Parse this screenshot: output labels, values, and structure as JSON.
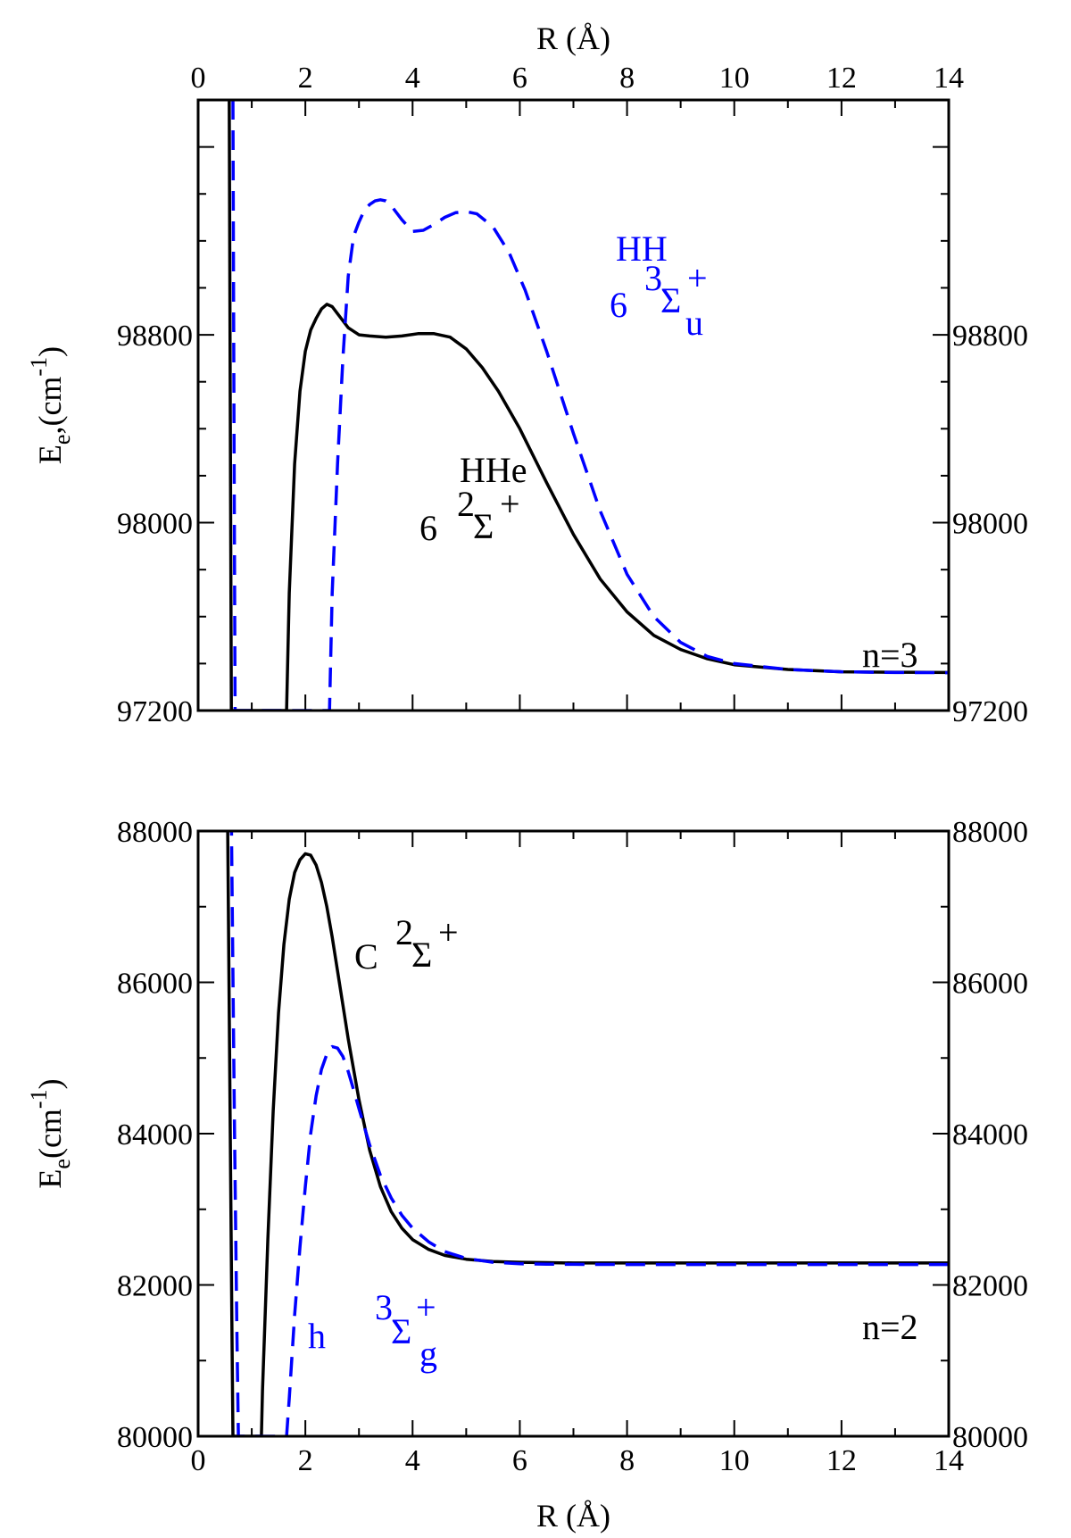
{
  "chart_data": [
    {
      "type": "line",
      "title": "",
      "xlabel": "R (Å)",
      "xlabel_position": "top",
      "ylabel": "E_e,(cm^-1)",
      "xlim": [
        0,
        14
      ],
      "ylim": [
        97200,
        99800
      ],
      "x_ticks": [
        0,
        2,
        4,
        6,
        8,
        10,
        12,
        14
      ],
      "y_ticks": [
        97200,
        98000,
        98800
      ],
      "x_tick_labels_shown": true,
      "grid": false,
      "legend": "none",
      "series": [
        {
          "label": "HHe 6 2Σ+",
          "color": "#000000",
          "dash": "solid",
          "x": [
            0.58,
            0.6,
            0.62,
            1.65,
            1.7,
            1.8,
            1.9,
            2.0,
            2.1,
            2.2,
            2.3,
            2.4,
            2.5,
            2.6,
            2.8,
            3.0,
            3.2,
            3.5,
            3.8,
            4.1,
            4.4,
            4.7,
            5.0,
            5.3,
            5.6,
            6.0,
            6.5,
            7.0,
            7.5,
            8.0,
            8.5,
            9.0,
            9.5,
            10.0,
            11.0,
            12.0,
            13.0,
            14.0
          ],
          "y": [
            99850,
            98500,
            97200,
            97200,
            97700,
            98250,
            98560,
            98730,
            98820,
            98870,
            98910,
            98930,
            98920,
            98890,
            98830,
            98800,
            98795,
            98790,
            98795,
            98805,
            98805,
            98790,
            98740,
            98660,
            98560,
            98400,
            98170,
            97950,
            97760,
            97620,
            97520,
            97460,
            97420,
            97395,
            97375,
            97365,
            97363,
            97362
          ]
        },
        {
          "label": "HH 6 3Σ+u",
          "color": "#0000ff",
          "dash": "dashed",
          "x": [
            0.65,
            0.67,
            0.69,
            2.45,
            2.5,
            2.6,
            2.7,
            2.8,
            2.9,
            3.0,
            3.1,
            3.2,
            3.3,
            3.4,
            3.5,
            3.6,
            3.8,
            4.0,
            4.2,
            4.4,
            4.6,
            4.8,
            5.0,
            5.2,
            5.5,
            5.8,
            6.1,
            6.5,
            7.0,
            7.5,
            8.0,
            8.5,
            9.0,
            9.5,
            10.0,
            11.0,
            12.0,
            13.0,
            14.0
          ],
          "y": [
            99800,
            98400,
            97200,
            97200,
            97700,
            98250,
            98700,
            99050,
            99220,
            99280,
            99330,
            99355,
            99370,
            99375,
            99370,
            99350,
            99290,
            99240,
            99245,
            99270,
            99300,
            99320,
            99325,
            99315,
            99260,
            99150,
            98990,
            98730,
            98380,
            98050,
            97780,
            97600,
            97490,
            97430,
            97400,
            97375,
            97365,
            97362,
            97361
          ]
        }
      ],
      "annotations": [
        {
          "text": "HHe",
          "color": "#000000"
        },
        {
          "text": "6",
          "color": "#000000"
        },
        {
          "text": "2",
          "color": "#000000"
        },
        {
          "text": "Σ",
          "color": "#000000"
        },
        {
          "text": "+",
          "color": "#000000"
        },
        {
          "text": "HH",
          "color": "#0000ff"
        },
        {
          "text": "6",
          "color": "#0000ff"
        },
        {
          "text": "3",
          "color": "#0000ff"
        },
        {
          "text": "Σ",
          "color": "#0000ff"
        },
        {
          "text": "+",
          "color": "#0000ff"
        },
        {
          "text": "u",
          "color": "#0000ff"
        },
        {
          "text": "n=3",
          "color": "#000000"
        }
      ]
    },
    {
      "type": "line",
      "title": "",
      "xlabel": "R (Å)",
      "xlabel_position": "bottom",
      "ylabel": "E_e(cm^-1)",
      "xlim": [
        0,
        14
      ],
      "ylim": [
        80000,
        88000
      ],
      "x_ticks": [
        0,
        2,
        4,
        6,
        8,
        10,
        12,
        14
      ],
      "y_ticks": [
        80000,
        82000,
        84000,
        86000,
        88000
      ],
      "grid": false,
      "legend": "none",
      "series": [
        {
          "label": "C 2Σ+",
          "color": "#000000",
          "dash": "solid",
          "x": [
            0.55,
            0.6,
            0.63,
            0.65,
            1.18,
            1.2,
            1.3,
            1.4,
            1.5,
            1.6,
            1.7,
            1.8,
            1.9,
            2.0,
            2.1,
            2.2,
            2.3,
            2.4,
            2.5,
            2.6,
            2.7,
            2.8,
            3.0,
            3.2,
            3.4,
            3.6,
            3.8,
            4.0,
            4.3,
            4.6,
            5.0,
            5.5,
            6.0,
            6.5,
            7.0,
            8.0,
            9.0,
            10.0,
            12.0,
            14.0
          ],
          "y": [
            88200,
            84000,
            81500,
            80000,
            80000,
            80600,
            82600,
            84300,
            85600,
            86500,
            87100,
            87450,
            87620,
            87700,
            87680,
            87550,
            87320,
            87000,
            86600,
            86150,
            85700,
            85250,
            84450,
            83780,
            83300,
            82970,
            82750,
            82600,
            82470,
            82390,
            82340,
            82310,
            82300,
            82295,
            82290,
            82290,
            82290,
            82290,
            82290,
            82290
          ]
        },
        {
          "label": "h 3Σg+",
          "color": "#0000ff",
          "dash": "dashed",
          "x": [
            0.62,
            0.68,
            0.72,
            0.75,
            1.65,
            1.7,
            1.8,
            1.9,
            2.0,
            2.1,
            2.2,
            2.3,
            2.4,
            2.5,
            2.6,
            2.7,
            2.8,
            2.9,
            3.0,
            3.2,
            3.4,
            3.6,
            3.8,
            4.0,
            4.3,
            4.6,
            5.0,
            5.5,
            6.0,
            6.5,
            7.0,
            8.0,
            9.0,
            10.0,
            12.0,
            14.0
          ],
          "y": [
            88200,
            84000,
            81500,
            80000,
            80000,
            80500,
            81600,
            82500,
            83300,
            84000,
            84500,
            84850,
            85050,
            85150,
            85130,
            85020,
            84820,
            84580,
            84330,
            83850,
            83450,
            83150,
            82920,
            82750,
            82570,
            82440,
            82350,
            82300,
            82280,
            82275,
            82272,
            82270,
            82270,
            82270,
            82270,
            82270
          ]
        }
      ],
      "annotations": [
        {
          "text": "C",
          "color": "#000000"
        },
        {
          "text": "2",
          "color": "#000000"
        },
        {
          "text": "Σ",
          "color": "#000000"
        },
        {
          "text": "+",
          "color": "#000000"
        },
        {
          "text": "h",
          "color": "#0000ff"
        },
        {
          "text": "3",
          "color": "#0000ff"
        },
        {
          "text": "Σ",
          "color": "#0000ff"
        },
        {
          "text": "g",
          "color": "#0000ff"
        },
        {
          "text": "+",
          "color": "#0000ff"
        },
        {
          "text": "n=2",
          "color": "#000000"
        }
      ]
    }
  ]
}
